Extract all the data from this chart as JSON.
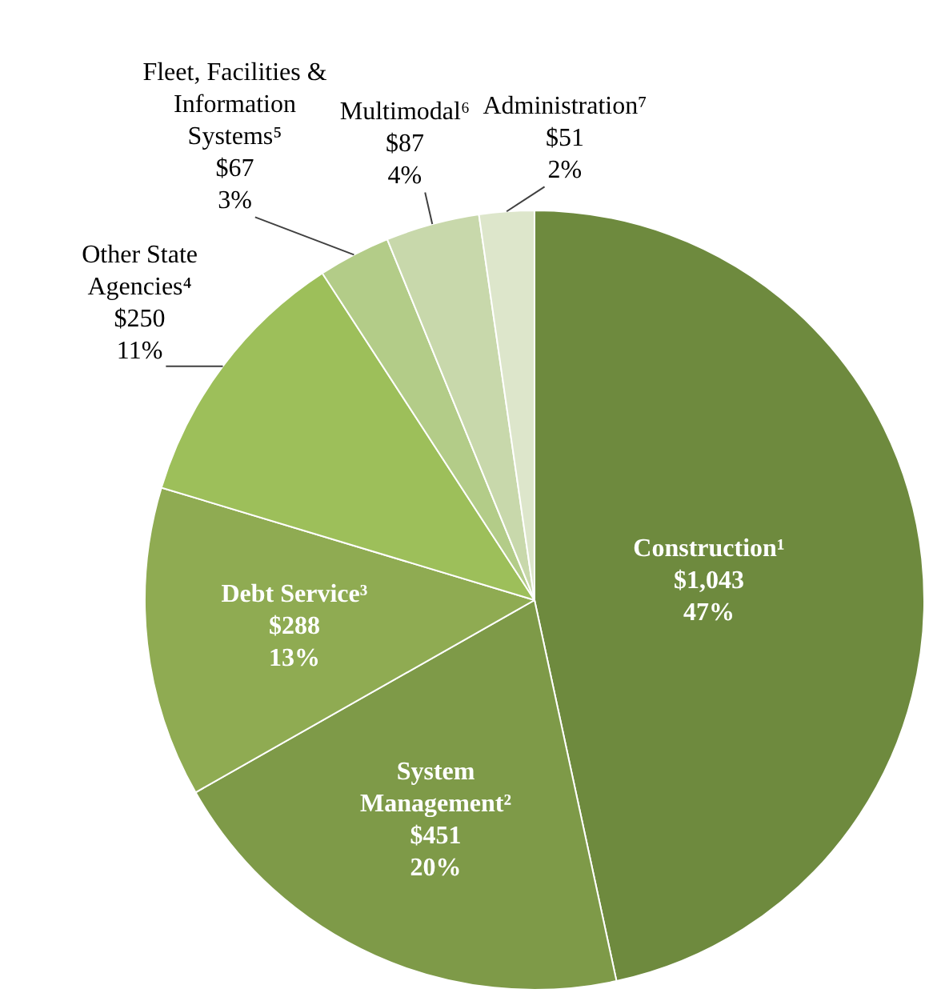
{
  "chart_data": {
    "type": "pie",
    "categories": [
      "Construction¹",
      "System Management²",
      "Debt Service³",
      "Other State Agencies⁴",
      "Fleet, Facilities & Information Systems⁵",
      "Multimodal⁶",
      "Administration⁷"
    ],
    "values": [
      1043,
      451,
      288,
      250,
      67,
      87,
      51
    ],
    "colors": [
      "#6e8a3e",
      "#7e9a48",
      "#8fab52",
      "#9dbf5a",
      "#b3cc88",
      "#c8d8ab",
      "#dde6cb"
    ],
    "value_labels": [
      "$1,043\n47%",
      "$451\n20%",
      "$288\n13%",
      "$250\n11%",
      "$67\n3%",
      "$87\n4%",
      "$51\n2%"
    ],
    "legend": false
  }
}
